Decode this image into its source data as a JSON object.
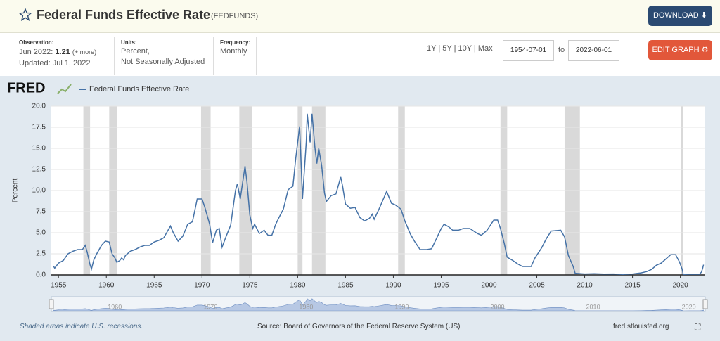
{
  "header": {
    "title": "Federal Funds Effective Rate",
    "code": "(FEDFUNDS)",
    "download": "DOWNLOAD"
  },
  "info": {
    "observation_label": "Observation:",
    "observation_date": "Jun 2022:",
    "observation_value": "1.21",
    "more": "(+ more)",
    "updated": "Updated: Jul 1, 2022",
    "units_label": "Units:",
    "units": [
      "Percent,",
      "Not Seasonally Adjusted"
    ],
    "frequency_label": "Frequency:",
    "frequency": "Monthly"
  },
  "controls": {
    "ranges": [
      "1Y",
      "5Y",
      "10Y",
      "Max"
    ],
    "start": "1954-07-01",
    "to": "to",
    "end": "2022-06-01",
    "edit": "EDIT GRAPH"
  },
  "chart_data": {
    "type": "line",
    "logo": "FRED",
    "y_label": "Percent",
    "x": [
      1954.5,
      1954.6,
      1955.0,
      1955.5,
      1956.0,
      1956.5,
      1957.0,
      1957.5,
      1957.8,
      1958.0,
      1958.3,
      1958.45,
      1958.7,
      1959.0,
      1959.5,
      1959.9,
      1960.3,
      1960.6,
      1960.9,
      1961.1,
      1961.4,
      1961.6,
      1961.8,
      1962.0,
      1962.5,
      1963.0,
      1963.5,
      1964.0,
      1964.5,
      1965.0,
      1965.5,
      1966.0,
      1966.7,
      1967.0,
      1967.5,
      1968.0,
      1968.5,
      1969.0,
      1969.5,
      1970.0,
      1970.3,
      1970.8,
      1971.1,
      1971.5,
      1971.8,
      1972.1,
      1972.5,
      1973.0,
      1973.5,
      1973.7,
      1974.0,
      1974.5,
      1974.7,
      1975.0,
      1975.3,
      1975.5,
      1976.0,
      1976.5,
      1976.9,
      1977.3,
      1977.7,
      1978.0,
      1978.5,
      1979.0,
      1979.5,
      1979.8,
      1980.2,
      1980.3,
      1980.5,
      1980.9,
      1981.0,
      1981.3,
      1981.5,
      1981.8,
      1982.0,
      1982.2,
      1982.5,
      1982.8,
      1983.0,
      1983.5,
      1984.0,
      1984.5,
      1984.7,
      1985.0,
      1985.5,
      1986.0,
      1986.5,
      1987.0,
      1987.5,
      1987.8,
      1988.0,
      1988.5,
      1989.0,
      1989.3,
      1989.8,
      1990.2,
      1990.8,
      1991.2,
      1991.8,
      1992.2,
      1992.8,
      1993.5,
      1994.0,
      1994.5,
      1995.0,
      1995.3,
      1995.8,
      1996.2,
      1996.8,
      1997.3,
      1998.0,
      1998.8,
      1999.2,
      1999.8,
      2000.5,
      2000.9,
      2001.2,
      2001.6,
      2001.9,
      2002.5,
      2003.0,
      2003.5,
      2004.4,
      2004.8,
      2005.5,
      2006.0,
      2006.5,
      2007.5,
      2007.9,
      2008.3,
      2008.8,
      2009.0,
      2010.0,
      2011.0,
      2012.0,
      2013.0,
      2014.0,
      2015.0,
      2015.9,
      2016.5,
      2017.0,
      2017.5,
      2018.0,
      2018.5,
      2019.0,
      2019.5,
      2019.9,
      2020.2,
      2020.3,
      2021.0,
      2021.9,
      2022.0,
      2022.2,
      2022.33,
      2022.42
    ],
    "series": [
      {
        "name": "Federal Funds Effective Rate",
        "color": "#4572a7",
        "values": [
          1.0,
          0.8,
          1.4,
          1.7,
          2.5,
          2.8,
          3.0,
          3.0,
          3.5,
          2.7,
          1.2,
          0.7,
          1.8,
          2.5,
          3.5,
          4.0,
          3.9,
          2.5,
          2.0,
          1.5,
          1.7,
          2.0,
          1.8,
          2.3,
          2.8,
          3.0,
          3.3,
          3.5,
          3.5,
          3.9,
          4.1,
          4.4,
          5.8,
          5.0,
          4.0,
          4.6,
          6.0,
          6.3,
          9.0,
          9.0,
          8.0,
          6.0,
          3.8,
          5.3,
          5.5,
          3.3,
          4.5,
          5.9,
          10.0,
          10.8,
          9.0,
          12.9,
          11.0,
          7.1,
          5.5,
          6.0,
          4.9,
          5.3,
          4.7,
          4.7,
          6.0,
          6.7,
          7.8,
          10.1,
          10.5,
          13.8,
          17.6,
          15.0,
          9.0,
          15.8,
          19.1,
          15.7,
          19.1,
          15.1,
          13.2,
          15.0,
          13.0,
          9.7,
          8.7,
          9.4,
          9.6,
          11.6,
          10.5,
          8.4,
          7.9,
          8.0,
          6.8,
          6.4,
          6.7,
          7.2,
          6.6,
          7.8,
          9.1,
          9.9,
          8.5,
          8.3,
          7.8,
          6.4,
          4.8,
          4.0,
          3.0,
          3.0,
          3.1,
          4.3,
          5.5,
          6.0,
          5.7,
          5.3,
          5.3,
          5.5,
          5.5,
          4.9,
          4.7,
          5.3,
          6.5,
          6.5,
          5.5,
          3.7,
          2.1,
          1.7,
          1.3,
          1.0,
          1.0,
          2.0,
          3.2,
          4.3,
          5.2,
          5.3,
          4.5,
          2.3,
          1.0,
          0.2,
          0.12,
          0.14,
          0.1,
          0.12,
          0.07,
          0.12,
          0.24,
          0.4,
          0.66,
          1.15,
          1.4,
          1.9,
          2.4,
          2.4,
          1.55,
          0.65,
          0.05,
          0.09,
          0.08,
          0.08,
          0.33,
          0.77,
          1.21
        ]
      }
    ],
    "recessions": [
      [
        1957.6,
        1958.3
      ],
      [
        1960.3,
        1961.1
      ],
      [
        1969.9,
        1970.9
      ],
      [
        1973.9,
        1975.2
      ],
      [
        1980.0,
        1980.5
      ],
      [
        1981.5,
        1982.9
      ],
      [
        1990.5,
        1991.2
      ],
      [
        2001.2,
        2001.9
      ],
      [
        2007.9,
        2009.5
      ],
      [
        2020.1,
        2020.3
      ]
    ],
    "xlim": [
      1954.25,
      2022.6
    ],
    "ylim": [
      0,
      20
    ],
    "xticks": [
      1955,
      1960,
      1965,
      1970,
      1975,
      1980,
      1985,
      1990,
      1995,
      2000,
      2005,
      2010,
      2015,
      2020
    ],
    "yticks": [
      {
        "value": 0,
        "label": "0.0"
      },
      2.5,
      {
        "value": 5,
        "label": "5.0"
      },
      7.5,
      {
        "value": 10,
        "label": "10.0"
      },
      12.5,
      {
        "value": 15,
        "label": "15.0"
      },
      17.5,
      {
        "value": 20,
        "label": "20.0"
      }
    ],
    "navigator_ticks": [
      1960,
      1970,
      1980,
      1990,
      2000,
      2010,
      2020
    ],
    "grid": true
  },
  "footer": {
    "note": "Shaded areas indicate U.S. recessions.",
    "source": "Source: Board of Governors of the Federal Reserve System (US)",
    "site": "fred.stlouisfed.org"
  }
}
